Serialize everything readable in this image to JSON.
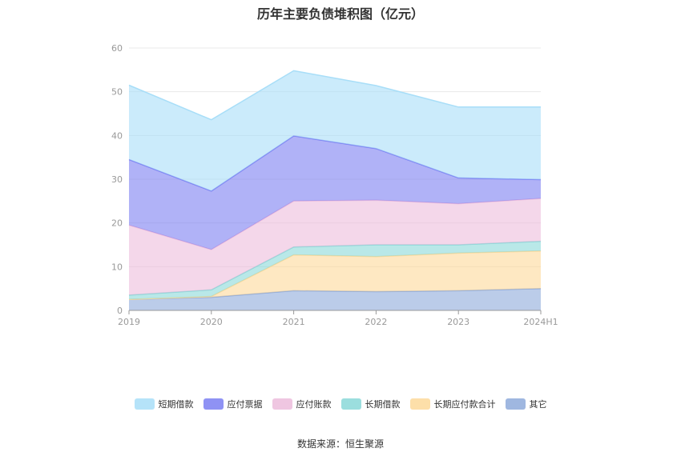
{
  "chart_data": {
    "type": "area",
    "title": "历年主要负债堆积图（亿元）",
    "categories": [
      "2019",
      "2020",
      "2021",
      "2022",
      "2023",
      "2024H1"
    ],
    "ylim": [
      0,
      60
    ],
    "yticks": [
      0,
      10,
      20,
      30,
      40,
      50,
      60
    ],
    "stacked": true,
    "grid": true,
    "legend_position": "bottom",
    "series": [
      {
        "name": "其它",
        "color": "#8eaadb",
        "values": [
          2.5,
          3.0,
          4.5,
          4.3,
          4.5,
          5.0
        ]
      },
      {
        "name": "长期应付款合计",
        "color": "#fdd99a",
        "values": [
          0.0,
          0.2,
          8.2,
          8.0,
          8.6,
          8.6
        ]
      },
      {
        "name": "长期借款",
        "color": "#8ad8d8",
        "values": [
          1.0,
          1.5,
          1.8,
          2.7,
          1.9,
          2.2
        ]
      },
      {
        "name": "应付账款",
        "color": "#ecbcdc",
        "values": [
          16.0,
          9.2,
          10.5,
          10.2,
          9.4,
          9.8
        ]
      },
      {
        "name": "应付票据",
        "color": "#7b7ff2",
        "values": [
          15.0,
          13.4,
          14.9,
          11.8,
          5.9,
          4.3
        ]
      },
      {
        "name": "短期借款",
        "color": "#a8def8",
        "values": [
          17.0,
          16.3,
          14.9,
          14.4,
          16.2,
          16.6
        ]
      }
    ]
  },
  "legend_order": [
    "短期借款",
    "应付票据",
    "应付账款",
    "长期借款",
    "长期应付款合计",
    "其它"
  ],
  "source": "数据来源：恒生聚源"
}
